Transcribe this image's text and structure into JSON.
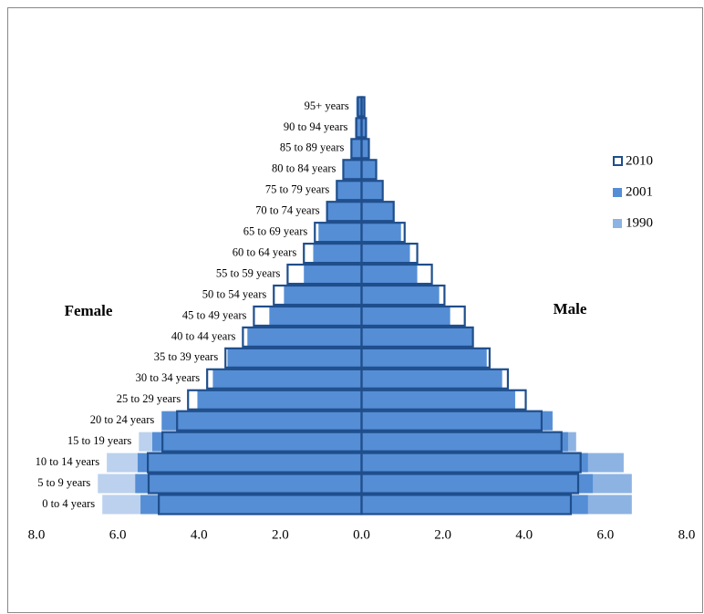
{
  "chart_data": {
    "type": "pyramid",
    "left_label": "Female",
    "right_label": "Male",
    "categories": [
      "0 to 4 years",
      "5 to 9 years",
      "10 to 14 years",
      "15 to 19 years",
      "20 to 24 years",
      "25 to 29 years",
      "30 to 34 years",
      "35 to 39 years",
      "40 to 44 years",
      "45 to 49 years",
      "50 to 54 years",
      "55 to 59 years",
      "60 to 64 years",
      "65 to 69 years",
      "70 to 74 years",
      "75 to 79 years",
      "80 to 84 years",
      "85 to 89 years",
      "90 to 94 years",
      "95+ years"
    ],
    "series": [
      {
        "name": "1990",
        "color": "#8db3e2",
        "style": "fill",
        "female": [
          6.38,
          6.49,
          6.27,
          5.48,
          4.8,
          4.22,
          3.5,
          3.1,
          2.7,
          2.2,
          1.8,
          1.4,
          1.2,
          1.0,
          0.8,
          0.55,
          0.35,
          0.2,
          0.1,
          0.12
        ],
        "male": [
          6.65,
          6.65,
          6.45,
          5.28,
          4.56,
          4.0,
          3.3,
          2.9,
          2.5,
          2.1,
          1.7,
          1.3,
          1.1,
          0.9,
          0.7,
          0.5,
          0.3,
          0.15,
          0.07,
          0.06
        ]
      },
      {
        "name": "2010",
        "color": "#1f4e8c",
        "style": "outline",
        "female": [
          4.99,
          5.24,
          5.26,
          4.9,
          4.54,
          4.27,
          3.8,
          3.35,
          2.92,
          2.65,
          2.16,
          1.82,
          1.42,
          1.15,
          0.85,
          0.61,
          0.45,
          0.25,
          0.13,
          0.09
        ],
        "male": [
          5.15,
          5.33,
          5.39,
          4.92,
          4.43,
          4.04,
          3.6,
          3.15,
          2.74,
          2.54,
          2.04,
          1.73,
          1.37,
          1.06,
          0.79,
          0.52,
          0.36,
          0.18,
          0.11,
          0.07
        ]
      },
      {
        "name": "2001",
        "color": "#558ed5",
        "style": "fill",
        "female": [
          5.44,
          5.57,
          5.51,
          5.15,
          4.92,
          4.04,
          3.66,
          3.3,
          2.81,
          2.27,
          1.91,
          1.42,
          1.19,
          1.06,
          0.85,
          0.61,
          0.43,
          0.25,
          0.16,
          0.13
        ],
        "male": [
          5.57,
          5.69,
          5.57,
          5.08,
          4.7,
          3.78,
          3.46,
          3.08,
          2.72,
          2.18,
          1.91,
          1.37,
          1.19,
          0.97,
          0.79,
          0.5,
          0.35,
          0.18,
          0.1,
          0.08
        ]
      }
    ],
    "legend_order": [
      1,
      2,
      0
    ],
    "xlim": [
      -8,
      8
    ],
    "xticks": [
      {
        "value": -8,
        "label": "8.0"
      },
      {
        "value": -6,
        "label": "6.0"
      },
      {
        "value": -4,
        "label": "4.0"
      },
      {
        "value": -2,
        "label": "2.0"
      },
      {
        "value": 0,
        "label": "0.0"
      },
      {
        "value": 2,
        "label": "2.0"
      },
      {
        "value": 4,
        "label": "4.0"
      },
      {
        "value": 6,
        "label": "6.0"
      },
      {
        "value": 8,
        "label": "8.0"
      }
    ]
  }
}
